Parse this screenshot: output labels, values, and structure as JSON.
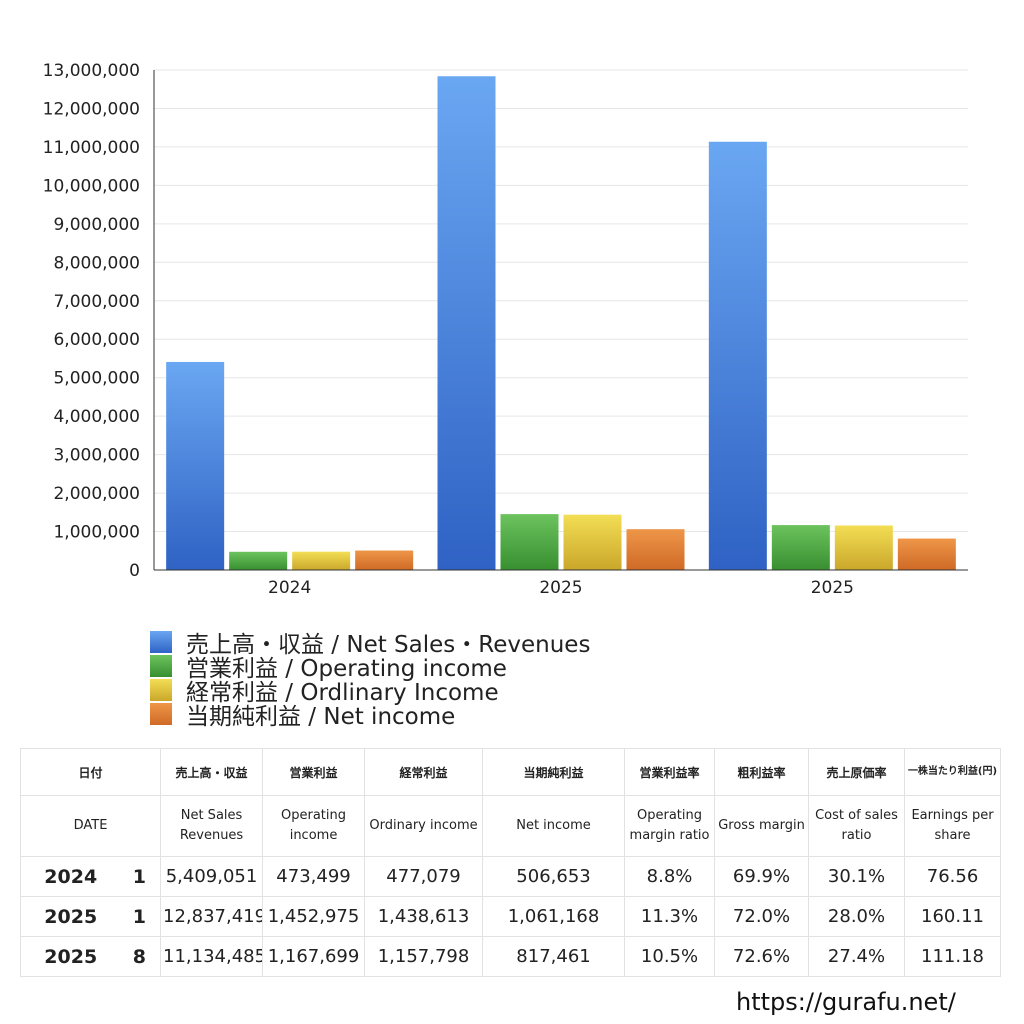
{
  "chart_data": {
    "type": "bar",
    "categories": [
      "2024",
      "2025",
      "2025"
    ],
    "series": [
      {
        "name": "売上高・収益 / Net Sales・Revenues",
        "color": "#4a86e0",
        "values": [
          5409051,
          12837419,
          11134485
        ]
      },
      {
        "name": "営業利益 / Operating income",
        "color": "#4aa840",
        "values": [
          473499,
          1452975,
          1167699
        ]
      },
      {
        "name": "経常利益 / Ordlinary Income",
        "color": "#e4c63a",
        "values": [
          477079,
          1438613,
          1157798
        ]
      },
      {
        "name": "当期純利益 / Net income",
        "color": "#e07c34",
        "values": [
          506653,
          1061168,
          817461
        ]
      }
    ],
    "yticks": [
      "0",
      "1,000,000",
      "2,000,000",
      "3,000,000",
      "4,000,000",
      "5,000,000",
      "6,000,000",
      "7,000,000",
      "8,000,000",
      "9,000,000",
      "10,000,000",
      "11,000,000",
      "12,000,000",
      "13,000,000"
    ],
    "ylim": [
      0,
      13000000
    ],
    "grid": true,
    "legend": "bottom-left"
  },
  "table": {
    "header_jp": [
      "日付",
      "売上高・収益",
      "営業利益",
      "経常利益",
      "当期純利益",
      "営業利益率",
      "粗利益率",
      "売上原価率",
      "一株当たり利益(円)"
    ],
    "header_en": [
      "DATE",
      "Net Sales Revenues",
      "Operating income",
      "Ordinary income",
      "Net income",
      "Operating margin ratio",
      "Gross margin",
      "Cost of sales ratio",
      "Earnings per share"
    ],
    "rows": [
      {
        "year": "2024",
        "month": "1",
        "sales": "5,409,051",
        "op": "473,499",
        "ord": "477,079",
        "net": "506,653",
        "opm": "8.8%",
        "gm": "69.9%",
        "cos": "30.1%",
        "eps": "76.56"
      },
      {
        "year": "2025",
        "month": "1",
        "sales": "12,837,419",
        "op": "1,452,975",
        "ord": "1,438,613",
        "net": "1,061,168",
        "opm": "11.3%",
        "gm": "72.0%",
        "cos": "28.0%",
        "eps": "160.11"
      },
      {
        "year": "2025",
        "month": "8",
        "sales": "11,134,485",
        "op": "1,167,699",
        "ord": "1,157,798",
        "net": "817,461",
        "opm": "10.5%",
        "gm": "72.6%",
        "cos": "27.4%",
        "eps": "111.18"
      }
    ]
  },
  "site_url": "https://gurafu.net/"
}
